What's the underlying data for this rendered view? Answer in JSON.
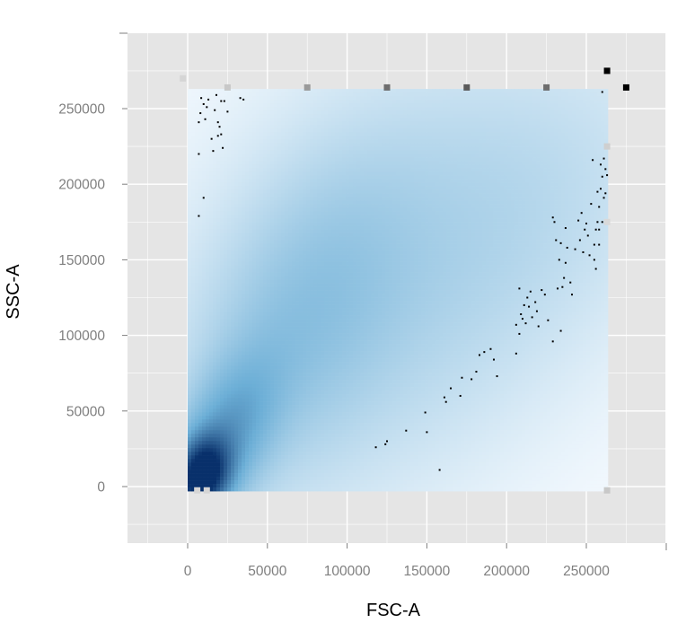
{
  "chart_data": {
    "type": "heatmap",
    "title": "",
    "xlabel": "FSC-A",
    "ylabel": "SSC-A",
    "xlim": [
      -38000,
      300000
    ],
    "ylim": [
      -37000,
      302000
    ],
    "x_ticks": [
      0,
      50000,
      100000,
      150000,
      200000,
      250000
    ],
    "x_tick_labels": [
      "0",
      "50000",
      "100000",
      "150000",
      "200000",
      "250000"
    ],
    "y_ticks": [
      0,
      50000,
      100000,
      150000,
      200000,
      250000
    ],
    "y_tick_labels": [
      "0",
      "50000",
      "100000",
      "150000",
      "200000",
      "250000"
    ],
    "grid": true,
    "colors": {
      "panel_background": "#e5e5e5",
      "grid": "#ffffff",
      "density_low": "#f7fbff",
      "density_high": "#08306b",
      "points": "#000000",
      "tick_label": "#7f7f7f",
      "axis_title": "#000000"
    },
    "density_region": {
      "x": [
        0,
        263000
      ],
      "y": [
        -2000,
        263000
      ]
    },
    "density_components": [
      {
        "cx": 9000,
        "cy": 7000,
        "sx": 11000,
        "sy": 16000,
        "rho": 0.2,
        "w": 1.0
      },
      {
        "cx": 22000,
        "cy": 30000,
        "sx": 22000,
        "sy": 35000,
        "rho": 0.5,
        "w": 0.35
      },
      {
        "cx": 70000,
        "cy": 110000,
        "sx": 42000,
        "sy": 65000,
        "rho": 0.45,
        "w": 0.13
      },
      {
        "cx": 110000,
        "cy": 150000,
        "sx": 70000,
        "sy": 80000,
        "rho": 0.35,
        "w": 0.07
      },
      {
        "cx": 160000,
        "cy": 120000,
        "sx": 90000,
        "sy": 90000,
        "rho": 0.6,
        "w": 0.05
      },
      {
        "cx": 210000,
        "cy": 200000,
        "sx": 55000,
        "sy": 60000,
        "rho": 0.2,
        "w": 0.03
      }
    ],
    "outlier_points": [
      [
        7000,
        241000
      ],
      [
        8000,
        247000
      ],
      [
        8500,
        257000
      ],
      [
        10000,
        253000
      ],
      [
        11000,
        243000
      ],
      [
        13000,
        256000
      ],
      [
        12000,
        251000
      ],
      [
        15000,
        230000
      ],
      [
        17000,
        249000
      ],
      [
        18000,
        259000
      ],
      [
        19000,
        241000
      ],
      [
        20000,
        238000
      ],
      [
        21000,
        233000
      ],
      [
        22000,
        224000
      ],
      [
        23000,
        255000
      ],
      [
        25000,
        248000
      ],
      [
        19000,
        232000
      ],
      [
        21000,
        255000
      ],
      [
        7000,
        220000
      ],
      [
        16000,
        222000
      ],
      [
        10000,
        191000
      ],
      [
        7000,
        179000
      ],
      [
        33000,
        257000
      ],
      [
        35000,
        256000
      ],
      [
        260000,
        261000
      ],
      [
        118000,
        26000
      ],
      [
        124000,
        28000
      ],
      [
        125000,
        30000
      ],
      [
        137000,
        37000
      ],
      [
        149000,
        49000
      ],
      [
        150000,
        36000
      ],
      [
        158000,
        11000
      ],
      [
        161000,
        59000
      ],
      [
        162000,
        56000
      ],
      [
        165000,
        65000
      ],
      [
        171000,
        60000
      ],
      [
        172000,
        72000
      ],
      [
        178000,
        71000
      ],
      [
        181000,
        76000
      ],
      [
        183000,
        87000
      ],
      [
        186000,
        89000
      ],
      [
        190000,
        91000
      ],
      [
        192000,
        84000
      ],
      [
        194000,
        73000
      ],
      [
        206000,
        88000
      ],
      [
        206000,
        107000
      ],
      [
        208000,
        131000
      ],
      [
        208000,
        101000
      ],
      [
        209000,
        114000
      ],
      [
        210000,
        111000
      ],
      [
        211000,
        120000
      ],
      [
        212000,
        108000
      ],
      [
        213000,
        125000
      ],
      [
        214000,
        119000
      ],
      [
        215000,
        129000
      ],
      [
        216000,
        112000
      ],
      [
        218000,
        122000
      ],
      [
        219000,
        116000
      ],
      [
        220000,
        106000
      ],
      [
        222000,
        130000
      ],
      [
        224000,
        127000
      ],
      [
        226000,
        110000
      ],
      [
        229000,
        96000
      ],
      [
        229000,
        178000
      ],
      [
        230000,
        175000
      ],
      [
        231000,
        163000
      ],
      [
        232000,
        131000
      ],
      [
        233000,
        150000
      ],
      [
        234000,
        161000
      ],
      [
        234000,
        103000
      ],
      [
        235000,
        132000
      ],
      [
        236000,
        138000
      ],
      [
        237000,
        148000
      ],
      [
        237000,
        171000
      ],
      [
        238000,
        158000
      ],
      [
        240000,
        135000
      ],
      [
        241000,
        127000
      ],
      [
        243000,
        157000
      ],
      [
        245000,
        176000
      ],
      [
        246000,
        163000
      ],
      [
        247000,
        181000
      ],
      [
        248000,
        155000
      ],
      [
        249000,
        170000
      ],
      [
        250000,
        174000
      ],
      [
        251000,
        166000
      ],
      [
        252000,
        153000
      ],
      [
        253000,
        187000
      ],
      [
        254000,
        216000
      ],
      [
        255000,
        150000
      ],
      [
        255000,
        160000
      ],
      [
        256000,
        144000
      ],
      [
        256000,
        170000
      ],
      [
        257000,
        175000
      ],
      [
        258000,
        185000
      ],
      [
        258000,
        160000
      ],
      [
        258000,
        170000
      ],
      [
        259000,
        213000
      ],
      [
        260000,
        205000
      ],
      [
        260000,
        175000
      ],
      [
        261000,
        217000
      ],
      [
        261000,
        191000
      ],
      [
        262000,
        194000
      ],
      [
        262000,
        210000
      ],
      [
        263000,
        206000
      ],
      [
        257000,
        195000
      ],
      [
        259000,
        197000
      ]
    ],
    "edge_marks": [
      {
        "x": -3000,
        "y": 270000,
        "shade": "#d5d5d5"
      },
      {
        "x": 25000,
        "y": 264000,
        "shade": "#c8c8c8"
      },
      {
        "x": 75000,
        "y": 264000,
        "shade": "#9a9a9a"
      },
      {
        "x": 125000,
        "y": 264000,
        "shade": "#6e6e6e"
      },
      {
        "x": 175000,
        "y": 264000,
        "shade": "#5a5a5a"
      },
      {
        "x": 225000,
        "y": 264000,
        "shade": "#6e6e6e"
      },
      {
        "x": 263000,
        "y": 225000,
        "shade": "#cfcfcf"
      },
      {
        "x": 263000,
        "y": 175000,
        "shade": "#d9d9d9"
      },
      {
        "x": 263000,
        "y": -2500,
        "shade": "#c8c8c8"
      },
      {
        "x": 6000,
        "y": -2500,
        "shade": "#d5d5d5"
      },
      {
        "x": 12000,
        "y": -2500,
        "shade": "#d5d5d5"
      },
      {
        "x": 263000,
        "y": 275000,
        "shade": "#000000"
      },
      {
        "x": 275000,
        "y": 264000,
        "shade": "#000000"
      }
    ]
  }
}
